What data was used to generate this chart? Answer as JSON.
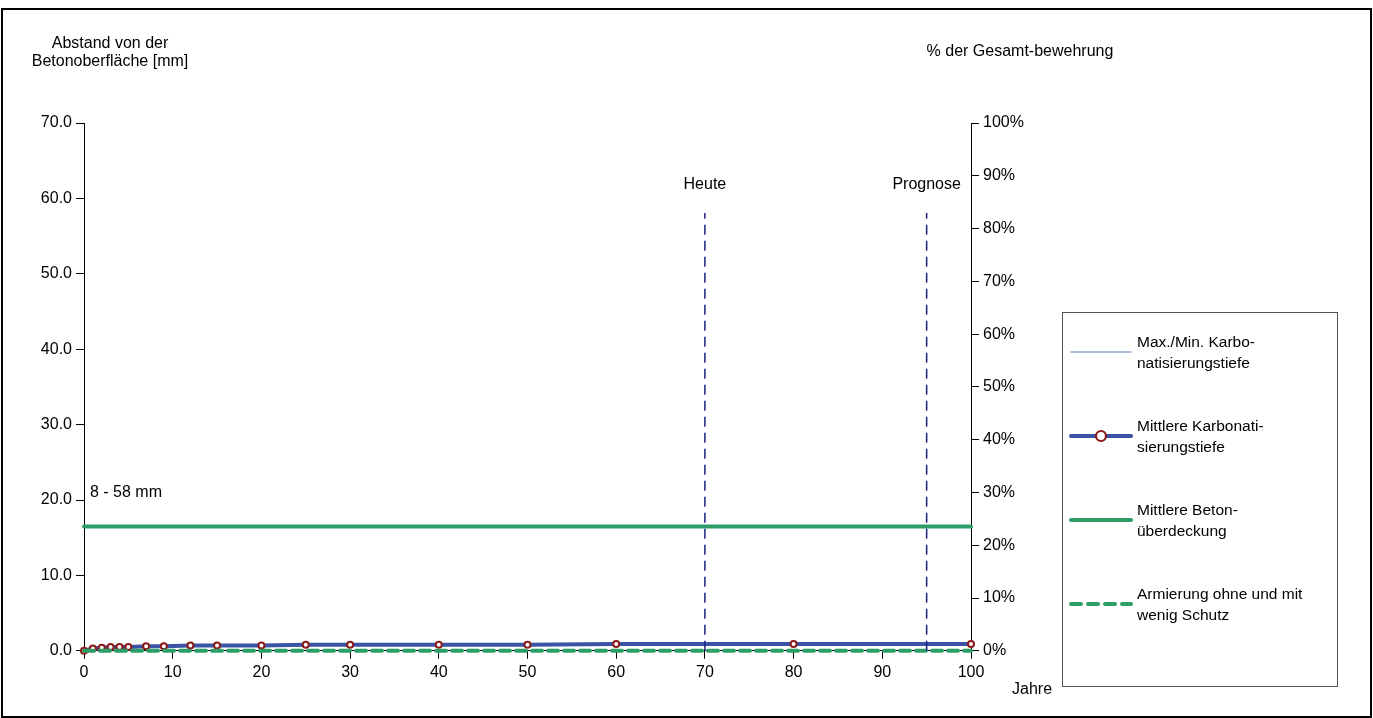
{
  "chart_data": {
    "type": "line",
    "ylabel": "Abstand von der Betonoberfläche [mm]",
    "y2label": "% der Gesamt-bewehrung",
    "xlabel": "Jahre",
    "xlim": [
      0,
      100
    ],
    "xticks": [
      0,
      10,
      20,
      30,
      40,
      50,
      60,
      70,
      80,
      90,
      100
    ],
    "ylim": [
      0,
      70
    ],
    "yticks": [
      {
        "value": 0,
        "label": "0.0"
      },
      {
        "value": 10,
        "label": "10.0"
      },
      {
        "value": 20,
        "label": "20.0"
      },
      {
        "value": 30,
        "label": "30.0"
      },
      {
        "value": 40,
        "label": "40.0"
      },
      {
        "value": 50,
        "label": "50.0"
      },
      {
        "value": 60,
        "label": "60.0"
      },
      {
        "value": 70,
        "label": "70.0"
      }
    ],
    "y2lim": [
      0,
      100
    ],
    "y2ticks": [
      {
        "value": 0,
        "label": "0%"
      },
      {
        "value": 10,
        "label": "10%"
      },
      {
        "value": 20,
        "label": "20%"
      },
      {
        "value": 30,
        "label": "30%"
      },
      {
        "value": 40,
        "label": "40%"
      },
      {
        "value": 50,
        "label": "50%"
      },
      {
        "value": 60,
        "label": "60%"
      },
      {
        "value": 70,
        "label": "70%"
      },
      {
        "value": 80,
        "label": "80%"
      },
      {
        "value": 90,
        "label": "90%"
      },
      {
        "value": 100,
        "label": "100%"
      }
    ],
    "grid": false,
    "legend": "right",
    "series": [
      {
        "name": "Max./Min. Karbo-natisierungstiefe",
        "color": "#8fa3d6",
        "marker": "none",
        "line_style": "solid"
      },
      {
        "name": "Mittlere Karbonati-sierungstiefe",
        "color": "#3a53a4",
        "x": [
          0,
          1,
          2,
          3,
          4,
          5,
          7,
          9,
          12,
          15,
          20,
          25,
          30,
          40,
          50,
          60,
          80,
          100
        ],
        "values": [
          0,
          0.3,
          0.4,
          0.5,
          0.5,
          0.5,
          0.6,
          0.6,
          0.7,
          0.7,
          0.7,
          0.8,
          0.8,
          0.8,
          0.8,
          0.9,
          0.9,
          0.9
        ],
        "marker": "circle",
        "line_style": "solid"
      },
      {
        "name": "Mittlere Beton-überdeckung",
        "color": "#2e9e68",
        "x": [
          0,
          100
        ],
        "values": [
          16.5,
          16.5
        ],
        "marker": "none",
        "line_style": "solid"
      },
      {
        "name": "Armierung ohne und mit wenig Schutz",
        "color": "#2e9e68",
        "x": [
          0,
          100
        ],
        "values": [
          0,
          0
        ],
        "marker": "none",
        "line_style": "dashed"
      }
    ],
    "ref_lines": [
      {
        "axis": "x",
        "value": 70,
        "label": "Heute",
        "color": "#1a237e",
        "line_style": "dashed"
      },
      {
        "axis": "x",
        "value": 95,
        "label": "Prognose",
        "color": "#1a237e",
        "line_style": "dashed"
      }
    ],
    "annotations": [
      "8 - 58 mm"
    ]
  }
}
